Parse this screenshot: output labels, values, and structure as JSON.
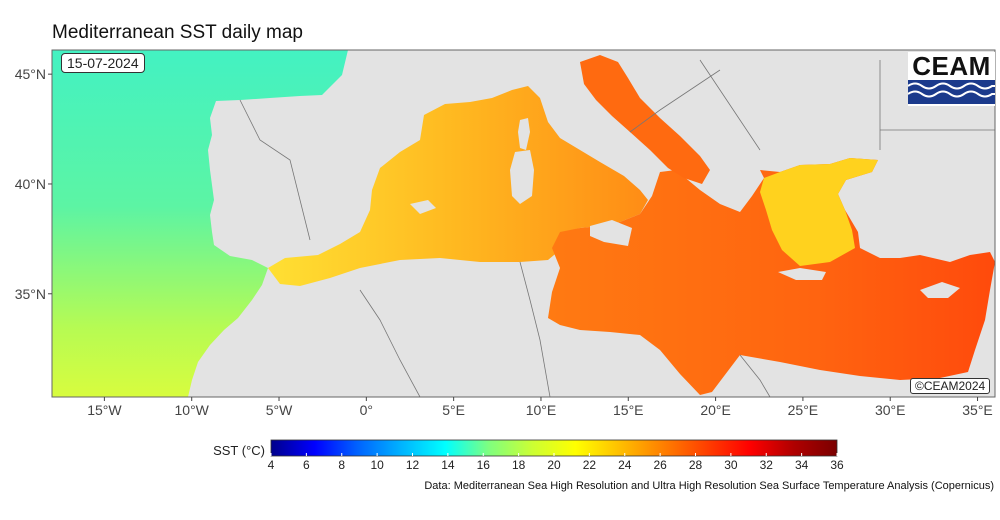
{
  "title": "Mediterranean SST daily map",
  "date": "15-07-2024",
  "logo": {
    "text": "CEAM"
  },
  "copyright": "©CEAM2024",
  "source": "Data: Mediterranean Sea High Resolution and Ultra High Resolution Sea Surface Temperature Analysis (Copernicus)",
  "axes": {
    "lon_ticks": [
      "15°W",
      "10°W",
      "5°W",
      "0°",
      "5°E",
      "10°E",
      "15°E",
      "20°E",
      "25°E",
      "30°E",
      "35°E"
    ],
    "lat_ticks": [
      "45°N",
      "40°N",
      "35°N"
    ]
  },
  "colorbar": {
    "label": "SST (°C)",
    "min": 4,
    "max": 36,
    "ticks": [
      "4",
      "6",
      "8",
      "10",
      "12",
      "14",
      "16",
      "18",
      "20",
      "22",
      "24",
      "26",
      "28",
      "30",
      "32",
      "34",
      "36"
    ],
    "colors": [
      "#00008b",
      "#0000ff",
      "#0064ff",
      "#00b4ff",
      "#00ffff",
      "#7fff7f",
      "#ccff33",
      "#ffff00",
      "#ffc000",
      "#ff8000",
      "#ff4000",
      "#ff0000",
      "#b00000",
      "#7a0000"
    ]
  },
  "colors": {
    "land": "#e3e3e3",
    "atlantic": "#4af0b4",
    "west_med": "#ffb21f",
    "east_med": "#ff6a10",
    "aegean": "#ffd21e",
    "border": "#777777"
  }
}
